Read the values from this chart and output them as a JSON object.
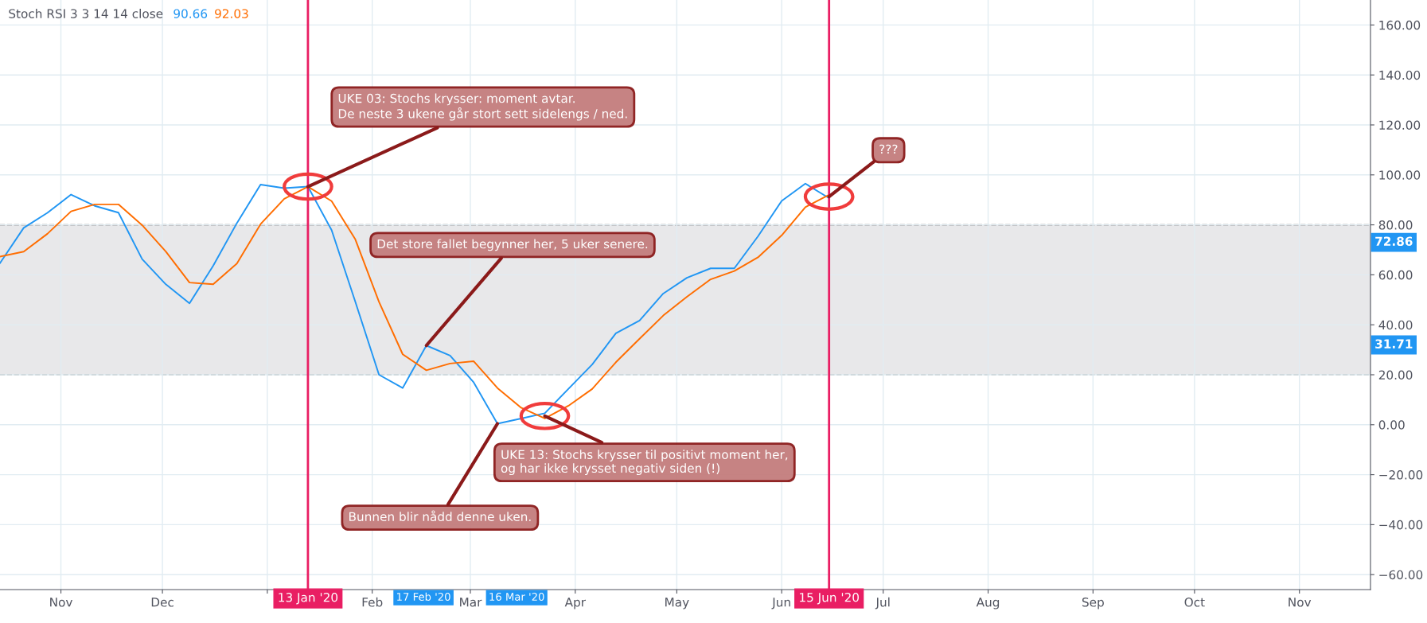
{
  "chart_data": {
    "type": "line",
    "title": "Stoch RSI 3 3 14 14 close",
    "x": [
      "2019-10-14",
      "2019-10-21",
      "2019-10-28",
      "2019-11-04",
      "2019-11-11",
      "2019-11-18",
      "2019-11-25",
      "2019-12-02",
      "2019-12-09",
      "2019-12-16",
      "2019-12-23",
      "2019-12-30",
      "2020-01-06",
      "2020-01-13",
      "2020-01-20",
      "2020-01-27",
      "2020-02-03",
      "2020-02-10",
      "2020-02-17",
      "2020-02-24",
      "2020-03-02",
      "2020-03-09",
      "2020-03-16",
      "2020-03-23",
      "2020-03-30",
      "2020-04-06",
      "2020-04-13",
      "2020-04-20",
      "2020-04-27",
      "2020-05-04",
      "2020-05-11",
      "2020-05-18",
      "2020-05-25",
      "2020-06-01",
      "2020-06-08",
      "2020-06-15"
    ],
    "series": [
      {
        "name": "90.66",
        "color": "#2196f3",
        "values": [
          64.7,
          78.8,
          84.8,
          92.1,
          87.6,
          84.9,
          66.3,
          56.2,
          48.6,
          63.6,
          80.7,
          96.1,
          94.7,
          95.3,
          77.9,
          49.2,
          20.0,
          14.7,
          31.7,
          27.7,
          16.9,
          0.4,
          2.5,
          4.6,
          14.4,
          24.1,
          36.6,
          41.7,
          52.5,
          58.8,
          62.6,
          62.6,
          75.4,
          89.6,
          96.5,
          90.7
        ]
      },
      {
        "name": "92.03",
        "color": "#ff6d00",
        "values": [
          67.3,
          69.3,
          76.4,
          85.4,
          88.2,
          88.2,
          79.9,
          69.3,
          56.9,
          56.2,
          64.5,
          80.3,
          90.4,
          95.3,
          89.5,
          74.2,
          49.2,
          28.2,
          21.8,
          24.5,
          25.4,
          14.7,
          6.8,
          2.5,
          7.6,
          14.3,
          25.0,
          34.4,
          43.7,
          51.2,
          58.2,
          61.5,
          67.0,
          75.8,
          87.1,
          92.0
        ]
      }
    ],
    "xlim": [
      "2019-10-14",
      "2020-11-22"
    ],
    "xticks": [
      {
        "value": "2019-11-01",
        "label": "Nov"
      },
      {
        "value": "2019-12-01",
        "label": "Dec"
      },
      {
        "value": "2020-01-01",
        "label": null
      },
      {
        "value": "2020-02-01",
        "label": "Feb"
      },
      {
        "value": "2020-03-01",
        "label": "Mar"
      },
      {
        "value": "2020-04-01",
        "label": "Apr"
      },
      {
        "value": "2020-05-01",
        "label": "May"
      },
      {
        "value": "2020-06-01",
        "label": "Jun"
      },
      {
        "value": "2020-07-01",
        "label": "Jul"
      },
      {
        "value": "2020-08-01",
        "label": "Aug"
      },
      {
        "value": "2020-09-01",
        "label": "Sep"
      },
      {
        "value": "2020-10-01",
        "label": "Oct"
      },
      {
        "value": "2020-11-01",
        "label": "Nov"
      }
    ],
    "ylim": [
      -66,
      170
    ],
    "yticks": [
      {
        "value": -60,
        "label": "−60.00"
      },
      {
        "value": -40,
        "label": "−40.00"
      },
      {
        "value": -20,
        "label": "−20.00"
      },
      {
        "value": 0,
        "label": "0.00"
      },
      {
        "value": 20,
        "label": "20.00"
      },
      {
        "value": 40,
        "label": "40.00"
      },
      {
        "value": 60,
        "label": "60.00"
      },
      {
        "value": 80,
        "label": "80.00"
      },
      {
        "value": 100,
        "label": "100.00"
      },
      {
        "value": 120,
        "label": "120.00"
      },
      {
        "value": 140,
        "label": "140.00"
      },
      {
        "value": 160,
        "label": "160.00"
      }
    ],
    "grid": true,
    "line_style": "solid",
    "bands": [
      {
        "axis": "y",
        "from": 20,
        "to": 80,
        "color": "#e8e8ea"
      }
    ],
    "ref_lines": [
      {
        "axis": "x",
        "value": "2020-01-13",
        "label": "13 Jan '20",
        "color": "#e91e63"
      },
      {
        "axis": "x",
        "value": "2020-06-15",
        "label": "15 Jun '20",
        "color": "#e91e63"
      }
    ],
    "annotations": [
      {
        "text": "UKE 03: Stochs krysser: moment avtar.\nDe neste 3 ukene går stort sett sidelengs / ned.",
        "x": "2020-01-13",
        "y": 95.3
      },
      {
        "text": "Det store fallet begynner her, 5 uker senere.",
        "x": "2020-02-17",
        "y": 31.7
      },
      {
        "text": "UKE 13: Stochs krysser til positivt moment her,\nog har ikke krysset negativ siden (!)",
        "x": "2020-03-23",
        "y": 3.5
      },
      {
        "text": "Bunnen blir nådd denne uken.",
        "x": "2020-03-09",
        "y": 0.4
      },
      {
        "text": "???",
        "x": "2020-06-15",
        "y": 91.3
      },
      "17 Feb '20",
      "16 Mar '20",
      "72.86",
      "31.71"
    ]
  }
}
